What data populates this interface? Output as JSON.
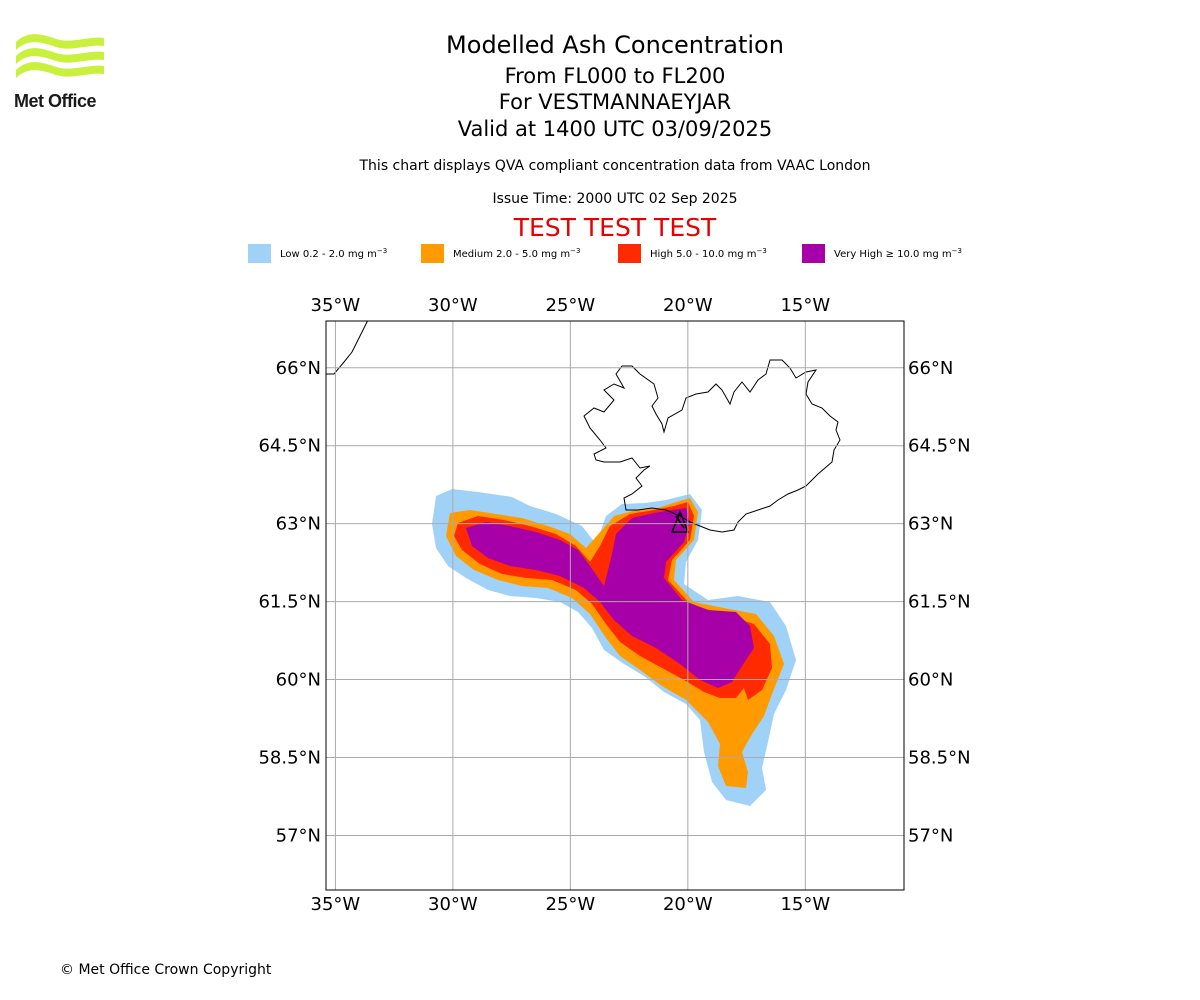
{
  "header": {
    "logo_text": "Met Office",
    "title": "Modelled Ash Concentration",
    "levels": "From FL000 to FL200",
    "volcano": "For VESTMANNAEYJAR",
    "valid": "Valid at 1400 UTC 03/09/2025",
    "note": "This chart displays QVA compliant concentration data from VAAC London",
    "issue": "Issue Time: 2000 UTC 02 Sep 2025",
    "test_banner": "TEST TEST TEST"
  },
  "legend": [
    {
      "label": "Low 0.2 - 2.0 mg m",
      "unit_exp": "−3",
      "color": "#a0d2f8"
    },
    {
      "label": "Medium 2.0 - 5.0 mg m",
      "unit_exp": "−3",
      "color": "#ff9a00"
    },
    {
      "label": "High 5.0 - 10.0 mg m",
      "unit_exp": "−3",
      "color": "#ff2a00"
    },
    {
      "label": "Very High  ≥  10.0 mg m",
      "unit_exp": "−3",
      "color": "#a800a8"
    }
  ],
  "map": {
    "lon_range": [
      -35.4,
      -10.8
    ],
    "lat_range": [
      55.95,
      66.9
    ],
    "lon_ticks": [
      -35,
      -30,
      -25,
      -20,
      -15
    ],
    "lat_ticks": [
      66,
      64.5,
      63,
      61.5,
      60,
      58.5,
      57
    ],
    "lon_tick_labels": [
      "35°W",
      "30°W",
      "25°W",
      "20°W",
      "15°W"
    ],
    "lat_tick_labels": [
      "66°N",
      "64.5°N",
      "63°N",
      "61.5°N",
      "60°N",
      "58.5°N",
      "57°N"
    ],
    "gridline_color": "#aaaaaa",
    "volcano_marker": "triangle-symbol"
  },
  "footer": {
    "copyright": "© Met Office Crown Copyright"
  }
}
